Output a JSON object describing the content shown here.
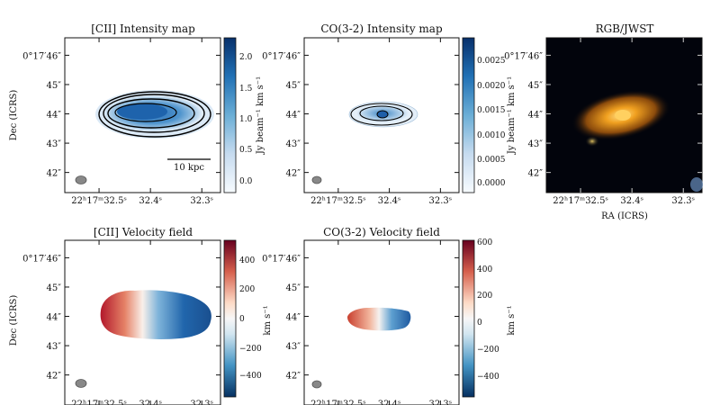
{
  "panels": {
    "cii_intensity": {
      "title": "[CII] Intensity map",
      "colorbar_label": "Jy beam⁻¹ km s⁻¹",
      "colorbar_ticks": [
        "2.0",
        "1.5",
        "1.0",
        "0.5",
        "0.0"
      ],
      "scalebar_label": "10 kpc"
    },
    "co_intensity": {
      "title": "CO(3-2) Intensity map",
      "colorbar_label": "Jy beam⁻¹ km s⁻¹",
      "colorbar_ticks": [
        "0.0025",
        "0.0020",
        "0.0015",
        "0.0010",
        "0.0005",
        "0.0000"
      ]
    },
    "rgb_jwst": {
      "title": "RGB/JWST",
      "xlabel": "RA (ICRS)"
    },
    "cii_velocity": {
      "title": "[CII] Velocity field",
      "colorbar_label": "km s⁻¹",
      "colorbar_ticks": [
        "400",
        "200",
        "0",
        "−200",
        "−400"
      ]
    },
    "co_velocity": {
      "title": "CO(3-2) Velocity field",
      "colorbar_label": "km s⁻¹",
      "colorbar_ticks": [
        "600",
        "400",
        "200",
        "0",
        "−200",
        "−400"
      ]
    }
  },
  "axes": {
    "dec_label": "Dec (ICRS)",
    "dec_ticks": [
      "0°17′46″",
      "45″",
      "44″",
      "43″",
      "42″"
    ],
    "ra_ticks": [
      "22ʰ17ᵐ32.5ˢ",
      "32.4ˢ",
      "32.3ˢ"
    ]
  },
  "colors": {
    "blues_low": "#f7fbff",
    "blues_high": "#08306b",
    "rdbu_red": "#67001f",
    "rdbu_mid": "#f7f7f7",
    "rdbu_blue": "#053061",
    "jwst_bg": "#02040c",
    "jwst_galaxy": "#f0a020"
  }
}
